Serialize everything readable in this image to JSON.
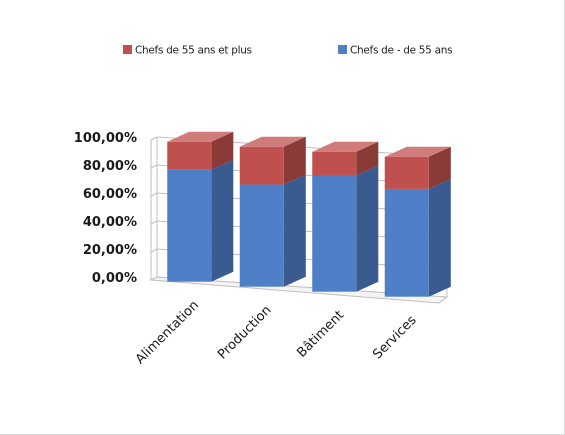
{
  "chart_data": {
    "type": "bar",
    "stacked": true,
    "percent_stacked": true,
    "three_d": true,
    "categories": [
      "Alimentation",
      "Production",
      "Bâtiment",
      "Services"
    ],
    "series": [
      {
        "name": "Chefs de - de 55 ans",
        "color": "#4f7fc6",
        "values": [
          80,
          73,
          83,
          77
        ]
      },
      {
        "name": "Chefs de 55 ans et plus",
        "color": "#c0504d",
        "values": [
          20,
          27,
          17,
          23
        ]
      }
    ],
    "legend_order": [
      1,
      0
    ],
    "legend_position": "top",
    "yticks": [
      "0,00%",
      "20,00%",
      "40,00%",
      "60,00%",
      "80,00%",
      "100,00%"
    ],
    "ylim": [
      0,
      100
    ],
    "grid": true
  }
}
